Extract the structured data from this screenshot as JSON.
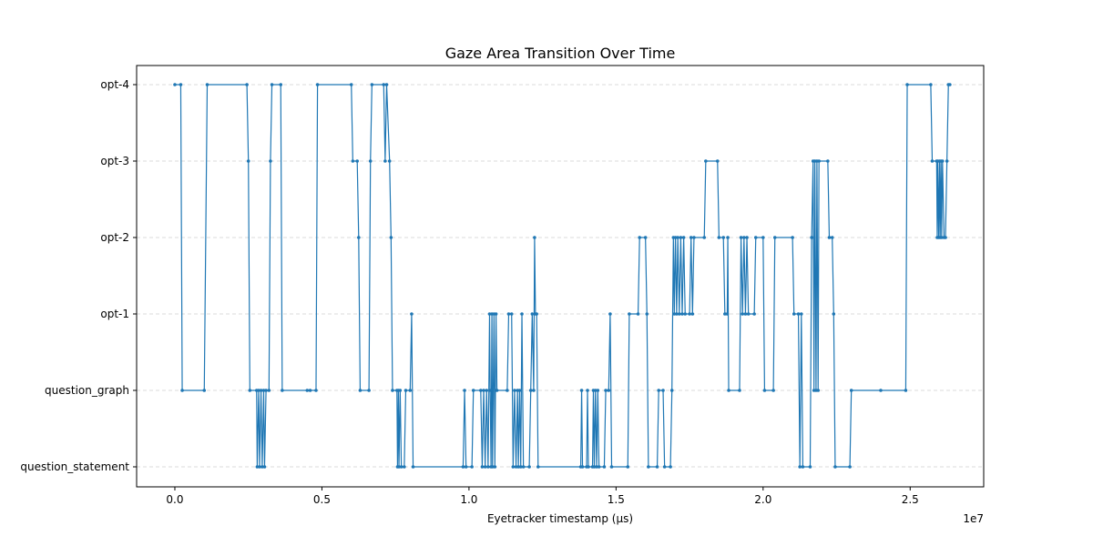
{
  "chart_data": {
    "type": "line",
    "title": "Gaze Area Transition Over Time",
    "xlabel": "Eyetracker timestamp (µs)",
    "ylabel": "",
    "x_offset_label": "1e7",
    "xlim": [
      -1300000,
      27500000
    ],
    "x_ticks": [
      0,
      5000000,
      10000000,
      15000000,
      20000000,
      25000000
    ],
    "x_tick_labels": [
      "0.0",
      "0.5",
      "1.0",
      "1.5",
      "2.0",
      "2.5"
    ],
    "categories": [
      "question_statement",
      "question_graph",
      "opt-1",
      "opt-2",
      "opt-3",
      "opt-4"
    ],
    "grid_y": true,
    "grid_style": "dashed",
    "line_color": "#1f77b4",
    "points": [
      [
        0,
        "opt-4"
      ],
      [
        200000,
        "opt-4"
      ],
      [
        250000,
        "question_graph"
      ],
      [
        1000000,
        "question_graph"
      ],
      [
        1100000,
        "opt-4"
      ],
      [
        2450000,
        "opt-4"
      ],
      [
        2500000,
        "opt-3"
      ],
      [
        2550000,
        "question_graph"
      ],
      [
        2780000,
        "question_graph"
      ],
      [
        2800000,
        "question_statement"
      ],
      [
        2850000,
        "question_graph"
      ],
      [
        2880000,
        "question_statement"
      ],
      [
        2930000,
        "question_graph"
      ],
      [
        2970000,
        "question_statement"
      ],
      [
        3020000,
        "question_graph"
      ],
      [
        3050000,
        "question_statement"
      ],
      [
        3100000,
        "question_graph"
      ],
      [
        3200000,
        "question_graph"
      ],
      [
        3250000,
        "opt-3"
      ],
      [
        3300000,
        "opt-4"
      ],
      [
        3600000,
        "opt-4"
      ],
      [
        3650000,
        "question_graph"
      ],
      [
        4500000,
        "question_graph"
      ],
      [
        4600000,
        "question_graph"
      ],
      [
        4800000,
        "question_graph"
      ],
      [
        4850000,
        "opt-4"
      ],
      [
        6000000,
        "opt-4"
      ],
      [
        6050000,
        "opt-3"
      ],
      [
        6200000,
        "opt-3"
      ],
      [
        6250000,
        "opt-2"
      ],
      [
        6300000,
        "question_graph"
      ],
      [
        6600000,
        "question_graph"
      ],
      [
        6650000,
        "opt-3"
      ],
      [
        6700000,
        "opt-4"
      ],
      [
        7100000,
        "opt-4"
      ],
      [
        7150000,
        "opt-3"
      ],
      [
        7200000,
        "opt-4"
      ],
      [
        7300000,
        "opt-3"
      ],
      [
        7350000,
        "opt-2"
      ],
      [
        7400000,
        "question_graph"
      ],
      [
        7550000,
        "question_graph"
      ],
      [
        7570000,
        "question_statement"
      ],
      [
        7600000,
        "question_graph"
      ],
      [
        7620000,
        "question_statement"
      ],
      [
        7660000,
        "question_graph"
      ],
      [
        7700000,
        "question_statement"
      ],
      [
        7800000,
        "question_statement"
      ],
      [
        7850000,
        "question_graph"
      ],
      [
        8000000,
        "question_graph"
      ],
      [
        8050000,
        "opt-1"
      ],
      [
        8100000,
        "question_statement"
      ],
      [
        9800000,
        "question_statement"
      ],
      [
        9850000,
        "question_graph"
      ],
      [
        9900000,
        "question_statement"
      ],
      [
        10100000,
        "question_statement"
      ],
      [
        10150000,
        "question_graph"
      ],
      [
        10400000,
        "question_graph"
      ],
      [
        10450000,
        "question_statement"
      ],
      [
        10500000,
        "question_graph"
      ],
      [
        10550000,
        "question_statement"
      ],
      [
        10600000,
        "question_graph"
      ],
      [
        10650000,
        "question_statement"
      ],
      [
        10700000,
        "opt-1"
      ],
      [
        10720000,
        "question_graph"
      ],
      [
        10750000,
        "question_statement"
      ],
      [
        10780000,
        "opt-1"
      ],
      [
        10800000,
        "question_statement"
      ],
      [
        10850000,
        "opt-1"
      ],
      [
        10880000,
        "question_statement"
      ],
      [
        10920000,
        "opt-1"
      ],
      [
        10950000,
        "question_graph"
      ],
      [
        11300000,
        "question_graph"
      ],
      [
        11350000,
        "opt-1"
      ],
      [
        11450000,
        "opt-1"
      ],
      [
        11500000,
        "question_statement"
      ],
      [
        11550000,
        "question_graph"
      ],
      [
        11600000,
        "question_statement"
      ],
      [
        11650000,
        "question_graph"
      ],
      [
        11680000,
        "question_statement"
      ],
      [
        11720000,
        "question_graph"
      ],
      [
        11760000,
        "question_statement"
      ],
      [
        11800000,
        "opt-1"
      ],
      [
        11850000,
        "question_statement"
      ],
      [
        12050000,
        "question_statement"
      ],
      [
        12100000,
        "question_graph"
      ],
      [
        12150000,
        "opt-1"
      ],
      [
        12200000,
        "question_graph"
      ],
      [
        12230000,
        "opt-2"
      ],
      [
        12260000,
        "opt-1"
      ],
      [
        12300000,
        "opt-1"
      ],
      [
        12350000,
        "question_statement"
      ],
      [
        13800000,
        "question_statement"
      ],
      [
        13830000,
        "question_graph"
      ],
      [
        13860000,
        "question_statement"
      ],
      [
        14000000,
        "question_statement"
      ],
      [
        14030000,
        "question_graph"
      ],
      [
        14060000,
        "question_statement"
      ],
      [
        14200000,
        "question_statement"
      ],
      [
        14230000,
        "question_graph"
      ],
      [
        14260000,
        "question_statement"
      ],
      [
        14300000,
        "question_graph"
      ],
      [
        14340000,
        "question_statement"
      ],
      [
        14380000,
        "question_graph"
      ],
      [
        14420000,
        "question_statement"
      ],
      [
        14600000,
        "question_statement"
      ],
      [
        14650000,
        "question_graph"
      ],
      [
        14750000,
        "question_graph"
      ],
      [
        14800000,
        "opt-1"
      ],
      [
        14850000,
        "question_statement"
      ],
      [
        15400000,
        "question_statement"
      ],
      [
        15450000,
        "opt-1"
      ],
      [
        15750000,
        "opt-1"
      ],
      [
        15800000,
        "opt-2"
      ],
      [
        16000000,
        "opt-2"
      ],
      [
        16050000,
        "opt-1"
      ],
      [
        16100000,
        "question_statement"
      ],
      [
        16400000,
        "question_statement"
      ],
      [
        16450000,
        "question_graph"
      ],
      [
        16600000,
        "question_graph"
      ],
      [
        16650000,
        "question_statement"
      ],
      [
        16850000,
        "question_statement"
      ],
      [
        16900000,
        "question_graph"
      ],
      [
        16950000,
        "opt-2"
      ],
      [
        16980000,
        "opt-1"
      ],
      [
        17020000,
        "opt-2"
      ],
      [
        17060000,
        "opt-1"
      ],
      [
        17100000,
        "opt-2"
      ],
      [
        17150000,
        "opt-1"
      ],
      [
        17200000,
        "opt-2"
      ],
      [
        17250000,
        "opt-1"
      ],
      [
        17300000,
        "opt-2"
      ],
      [
        17350000,
        "opt-1"
      ],
      [
        17500000,
        "opt-1"
      ],
      [
        17550000,
        "opt-2"
      ],
      [
        17600000,
        "opt-1"
      ],
      [
        17650000,
        "opt-2"
      ],
      [
        18000000,
        "opt-2"
      ],
      [
        18050000,
        "opt-3"
      ],
      [
        18450000,
        "opt-3"
      ],
      [
        18500000,
        "opt-2"
      ],
      [
        18650000,
        "opt-2"
      ],
      [
        18700000,
        "opt-1"
      ],
      [
        18780000,
        "opt-1"
      ],
      [
        18800000,
        "opt-2"
      ],
      [
        18830000,
        "question_graph"
      ],
      [
        19200000,
        "question_graph"
      ],
      [
        19250000,
        "opt-2"
      ],
      [
        19300000,
        "opt-1"
      ],
      [
        19350000,
        "opt-2"
      ],
      [
        19400000,
        "opt-1"
      ],
      [
        19450000,
        "opt-2"
      ],
      [
        19500000,
        "opt-1"
      ],
      [
        19700000,
        "opt-1"
      ],
      [
        19750000,
        "opt-2"
      ],
      [
        20000000,
        "opt-2"
      ],
      [
        20050000,
        "question_graph"
      ],
      [
        20350000,
        "question_graph"
      ],
      [
        20400000,
        "opt-2"
      ],
      [
        21000000,
        "opt-2"
      ],
      [
        21050000,
        "opt-1"
      ],
      [
        21200000,
        "opt-1"
      ],
      [
        21250000,
        "question_statement"
      ],
      [
        21300000,
        "opt-1"
      ],
      [
        21350000,
        "question_statement"
      ],
      [
        21600000,
        "question_statement"
      ],
      [
        21650000,
        "opt-2"
      ],
      [
        21700000,
        "opt-3"
      ],
      [
        21730000,
        "question_graph"
      ],
      [
        21760000,
        "opt-3"
      ],
      [
        21800000,
        "question_graph"
      ],
      [
        21830000,
        "opt-3"
      ],
      [
        21870000,
        "question_graph"
      ],
      [
        21900000,
        "opt-3"
      ],
      [
        22200000,
        "opt-3"
      ],
      [
        22250000,
        "opt-2"
      ],
      [
        22350000,
        "opt-2"
      ],
      [
        22400000,
        "opt-1"
      ],
      [
        22450000,
        "question_statement"
      ],
      [
        22950000,
        "question_statement"
      ],
      [
        23000000,
        "question_graph"
      ],
      [
        24000000,
        "question_graph"
      ],
      [
        24850000,
        "question_graph"
      ],
      [
        24900000,
        "opt-4"
      ],
      [
        25700000,
        "opt-4"
      ],
      [
        25750000,
        "opt-3"
      ],
      [
        25900000,
        "opt-3"
      ],
      [
        25920000,
        "opt-2"
      ],
      [
        25940000,
        "opt-3"
      ],
      [
        25970000,
        "opt-2"
      ],
      [
        26000000,
        "opt-3"
      ],
      [
        26020000,
        "opt-2"
      ],
      [
        26050000,
        "opt-3"
      ],
      [
        26070000,
        "opt-2"
      ],
      [
        26100000,
        "opt-3"
      ],
      [
        26150000,
        "opt-2"
      ],
      [
        26200000,
        "opt-2"
      ],
      [
        26250000,
        "opt-3"
      ],
      [
        26300000,
        "opt-4"
      ],
      [
        26350000,
        "opt-4"
      ]
    ]
  }
}
